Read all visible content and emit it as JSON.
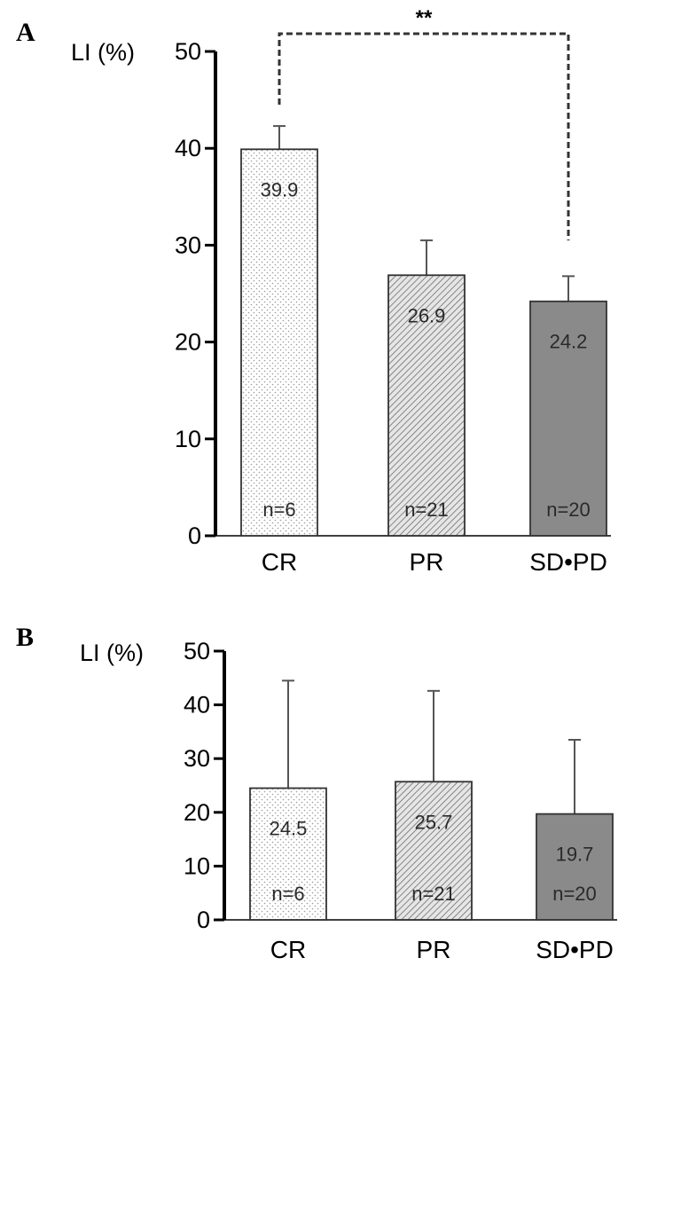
{
  "chart_data": [
    {
      "type": "bar",
      "panel": "A",
      "ylabel": "LI (%)",
      "ylim": [
        0,
        50
      ],
      "yticks": [
        0,
        10,
        20,
        30,
        40,
        50
      ],
      "categories": [
        "CR",
        "PR",
        "SD•PD"
      ],
      "values": [
        39.9,
        26.9,
        24.2
      ],
      "value_labels": [
        "39.9",
        "26.9",
        "24.2"
      ],
      "error_upper": [
        42.3,
        30.5,
        26.8
      ],
      "n_labels": [
        "n=6",
        "n=21",
        "n=20"
      ],
      "significance": {
        "from": "CR",
        "to": "SD•PD",
        "label": "**",
        "from_start": 44.5,
        "to_start": 30.5
      },
      "fill_styles": [
        "dots",
        "hatch",
        "solid"
      ],
      "colors": {
        "solid_fill": "#8a8a8a",
        "hatch": "#6e6e6e",
        "dots": "#9a9a9a"
      }
    },
    {
      "type": "bar",
      "panel": "B",
      "ylabel": "LI (%)",
      "ylim": [
        0,
        50
      ],
      "yticks": [
        0,
        10,
        20,
        30,
        40,
        50
      ],
      "categories": [
        "CR",
        "PR",
        "SD•PD"
      ],
      "values": [
        24.5,
        25.7,
        19.7
      ],
      "value_labels": [
        "24.5",
        "25.7",
        "19.7"
      ],
      "error_upper": [
        44.5,
        42.6,
        33.5
      ],
      "n_labels": [
        "n=6",
        "n=21",
        "n=20"
      ],
      "fill_styles": [
        "dots",
        "hatch",
        "solid"
      ],
      "colors": {
        "solid_fill": "#8a8a8a",
        "hatch": "#6e6e6e",
        "dots": "#9a9a9a"
      }
    }
  ]
}
